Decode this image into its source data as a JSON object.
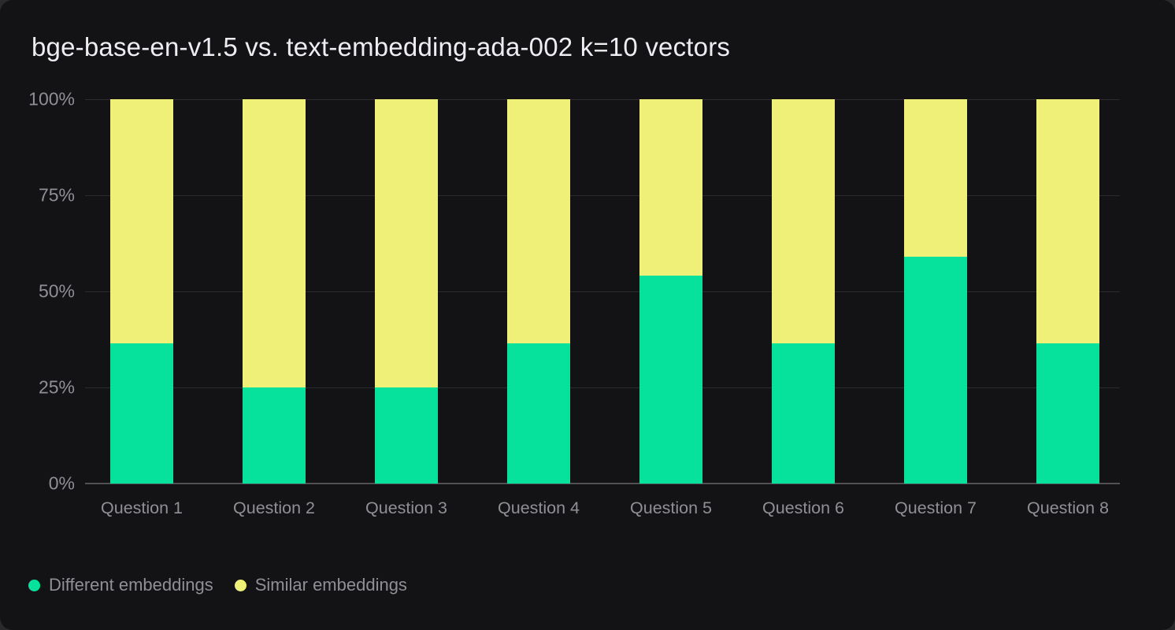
{
  "title": "bge-base-en-v1.5 vs. text-embedding-ada-002 k=10 vectors",
  "colors": {
    "outer_bg": "#2a2a2d",
    "card_bg": "#131316",
    "title_text": "#ededf2",
    "muted_text": "#8f8f96",
    "gridline": "#2c2c2f",
    "axis_line": "#515151",
    "different": "#06e29b",
    "similar": "#eef077"
  },
  "chart_data": {
    "type": "bar",
    "stacked": true,
    "title": "bge-base-en-v1.5 vs. text-embedding-ada-002 k=10 vectors",
    "categories": [
      "Question 1",
      "Question 2",
      "Question 3",
      "Question 4",
      "Question 5",
      "Question 6",
      "Question 7",
      "Question 8"
    ],
    "series": [
      {
        "name": "Different embeddings",
        "color": "#06e29b",
        "values": [
          36.5,
          25,
          25,
          36.5,
          54,
          36.5,
          59,
          36.5
        ]
      },
      {
        "name": "Similar embeddings",
        "color": "#eef077",
        "values": [
          63.5,
          75,
          75,
          63.5,
          46,
          63.5,
          41,
          63.5
        ]
      }
    ],
    "xlabel": "",
    "ylabel": "",
    "ylim": [
      0,
      100
    ],
    "y_ticks": [
      "0%",
      "25%",
      "50%",
      "75%",
      "100%"
    ],
    "grid": true,
    "legend_position": "bottom-left"
  }
}
